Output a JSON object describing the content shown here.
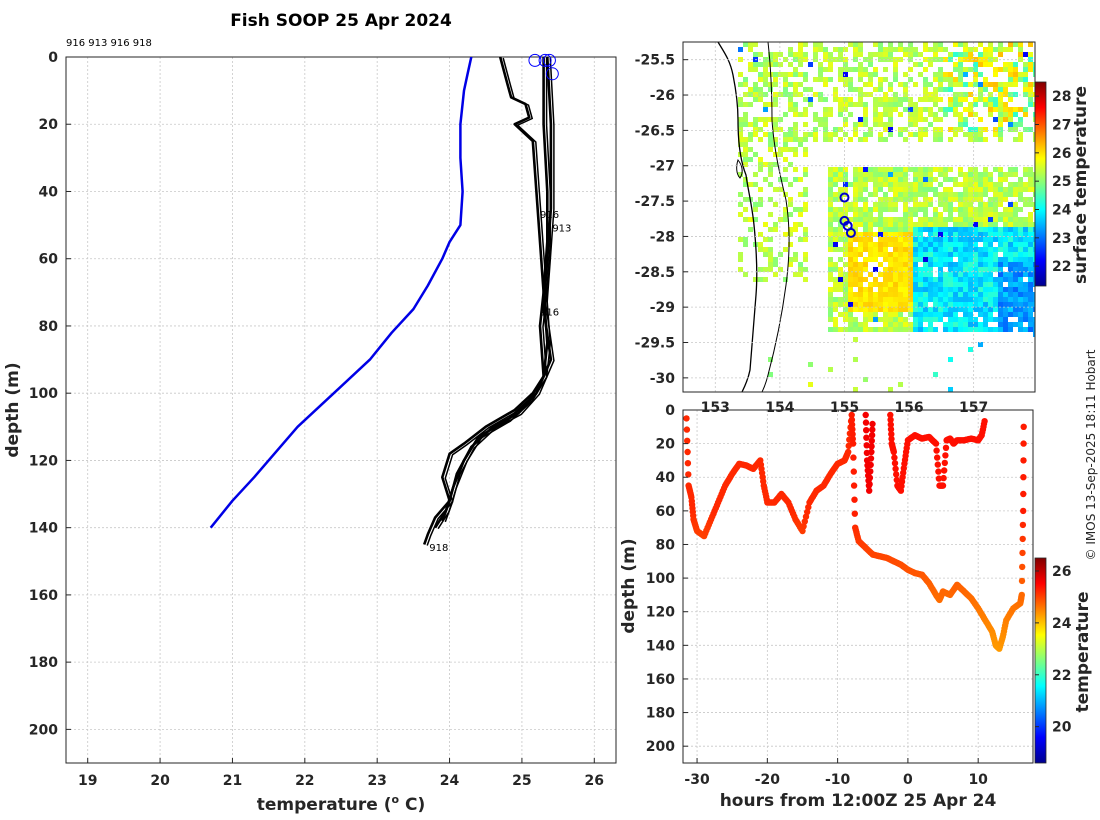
{
  "title": "Fish SOOP 25 Apr 2024",
  "credit": "© IMOS 13-Sep-2025 18:11 Hobart",
  "chart_data": [
    {
      "type": "line",
      "name": "temperature-profile",
      "xlabel": "temperature (",
      "xlabel_sup": "o",
      "xlabel_end": " C)",
      "ylabel": "depth (m)",
      "xlim": [
        18.7,
        26.3
      ],
      "ylim": [
        210,
        0
      ],
      "xticks": [
        19,
        20,
        21,
        22,
        23,
        24,
        25,
        26
      ],
      "yticks": [
        0,
        20,
        40,
        60,
        80,
        100,
        120,
        140,
        160,
        180,
        200
      ],
      "top_labels": "916 913 916 918",
      "profile_labels": [
        {
          "text": "916",
          "t": 25.25,
          "d": 47
        },
        {
          "text": "913",
          "t": 25.42,
          "d": 51
        },
        {
          "text": "916",
          "t": 25.25,
          "d": 76
        },
        {
          "text": "918",
          "t": 23.72,
          "d": 146
        }
      ],
      "series": [
        {
          "name": "climatology",
          "color": "#0000e6",
          "points": [
            [
              24.3,
              0
            ],
            [
              24.25,
              5
            ],
            [
              24.2,
              10
            ],
            [
              24.15,
              20
            ],
            [
              24.15,
              30
            ],
            [
              24.18,
              40
            ],
            [
              24.15,
              50
            ],
            [
              24.0,
              55
            ],
            [
              23.9,
              60
            ],
            [
              23.7,
              68
            ],
            [
              23.5,
              75
            ],
            [
              23.2,
              82
            ],
            [
              22.9,
              90
            ],
            [
              22.4,
              100
            ],
            [
              21.9,
              110
            ],
            [
              21.5,
              120
            ],
            [
              21.3,
              125
            ],
            [
              21.0,
              132
            ],
            [
              20.7,
              140
            ]
          ]
        },
        {
          "name": "profile-1",
          "color": "#000000",
          "points": [
            [
              24.7,
              0
            ],
            [
              24.8,
              8
            ],
            [
              24.85,
              12
            ],
            [
              25.05,
              14
            ],
            [
              25.1,
              18
            ],
            [
              24.9,
              20
            ],
            [
              25.15,
              25
            ],
            [
              25.2,
              40
            ],
            [
              25.25,
              55
            ],
            [
              25.3,
              70
            ],
            [
              25.25,
              80
            ],
            [
              25.3,
              95
            ],
            [
              25.15,
              100
            ],
            [
              24.9,
              105
            ],
            [
              24.5,
              110
            ],
            [
              24.2,
              115
            ],
            [
              24.0,
              118
            ],
            [
              23.9,
              125
            ],
            [
              24.0,
              132
            ],
            [
              23.8,
              137
            ],
            [
              23.7,
              142
            ],
            [
              23.65,
              145
            ]
          ]
        },
        {
          "name": "profile-2",
          "color": "#000000",
          "points": [
            [
              25.3,
              0
            ],
            [
              25.3,
              20
            ],
            [
              25.35,
              40
            ],
            [
              25.35,
              55
            ],
            [
              25.3,
              70
            ],
            [
              25.35,
              85
            ],
            [
              25.3,
              95
            ],
            [
              25.1,
              102
            ],
            [
              24.8,
              108
            ],
            [
              24.4,
              113
            ],
            [
              24.2,
              120
            ],
            [
              24.05,
              128
            ],
            [
              23.95,
              135
            ],
            [
              23.8,
              140
            ]
          ]
        },
        {
          "name": "profile-3",
          "color": "#000000",
          "points": [
            [
              25.35,
              0
            ],
            [
              25.4,
              20
            ],
            [
              25.4,
              45
            ],
            [
              25.35,
              60
            ],
            [
              25.3,
              75
            ],
            [
              25.4,
              90
            ],
            [
              25.2,
              100
            ],
            [
              24.95,
              106
            ],
            [
              24.6,
              110
            ],
            [
              24.3,
              116
            ],
            [
              24.1,
              124
            ],
            [
              24.0,
              132
            ],
            [
              23.9,
              138
            ]
          ]
        }
      ],
      "start_markers": [
        25.18,
        25.32,
        25.38
      ]
    },
    {
      "type": "heatmap",
      "name": "surface-temperature-map",
      "xlim": [
        152.5,
        157.95
      ],
      "ylim": [
        -30.2,
        -25.25
      ],
      "xticks": [
        153,
        154,
        155,
        156,
        157
      ],
      "yticks": [
        -25.5,
        -26,
        -26.5,
        -27,
        -27.5,
        -28,
        -28.5,
        -29,
        -29.5,
        -30
      ],
      "colorbar_label": "surface temperature",
      "colorbar_ticks": [
        22,
        23,
        24,
        25,
        26,
        27,
        28
      ],
      "colorbar_range": [
        21.3,
        28.5
      ],
      "positions": [
        [
          155.0,
          -27.45
        ],
        [
          155.0,
          -27.78
        ],
        [
          155.05,
          -27.85
        ],
        [
          155.1,
          -27.95
        ]
      ]
    },
    {
      "type": "scatter",
      "name": "depth-time-temperature",
      "xlabel": "hours from 12:00Z 25 Apr 24",
      "ylabel": "depth (m)",
      "xlim": [
        -32,
        17.8
      ],
      "ylim": [
        210,
        0
      ],
      "xticks": [
        -30,
        -20,
        -10,
        0,
        10
      ],
      "yticks": [
        0,
        20,
        40,
        60,
        80,
        100,
        120,
        140,
        160,
        180,
        200
      ],
      "colorbar_label": "temperature",
      "colorbar_ticks": [
        20,
        22,
        24,
        26
      ],
      "colorbar_range": [
        18.6,
        26.5
      ],
      "tracks": [
        {
          "temp": 25.2,
          "points": [
            [
              -31.5,
              5
            ],
            [
              -31.2,
              45
            ],
            [
              -30.8,
              52
            ],
            [
              -30.5,
              65
            ],
            [
              -30,
              72
            ],
            [
              -29,
              75
            ],
            [
              -28,
              65
            ],
            [
              -27,
              55
            ],
            [
              -26,
              45
            ],
            [
              -25,
              38
            ],
            [
              -24,
              32
            ],
            [
              -23,
              33
            ],
            [
              -22,
              35
            ],
            [
              -21,
              30
            ],
            [
              -20.5,
              45
            ],
            [
              -20,
              55
            ],
            [
              -19,
              55
            ],
            [
              -18,
              50
            ],
            [
              -17,
              55
            ],
            [
              -16,
              65
            ],
            [
              -15,
              72
            ],
            [
              -14,
              55
            ],
            [
              -13,
              48
            ],
            [
              -12,
              45
            ],
            [
              -11,
              38
            ],
            [
              -10,
              32
            ],
            [
              -9,
              30
            ],
            [
              -8.5,
              25
            ],
            [
              -8,
              3
            ]
          ]
        },
        {
          "temp": 25.3,
          "points": [
            [
              -8,
              3
            ],
            [
              -7.8,
              20
            ],
            [
              -7.5,
              70
            ],
            [
              -7,
              78
            ],
            [
              -6,
              82
            ],
            [
              -5,
              86
            ],
            [
              -4,
              87
            ],
            [
              -3,
              88
            ],
            [
              -2,
              90
            ],
            [
              -1,
              92
            ],
            [
              0,
              95
            ],
            [
              1,
              97
            ],
            [
              2,
              98
            ],
            [
              3,
              103
            ],
            [
              4,
              110
            ],
            [
              4.5,
              113
            ],
            [
              5,
              108
            ],
            [
              6,
              110
            ],
            [
              7,
              104
            ],
            [
              8,
              108
            ],
            [
              9,
              112
            ],
            [
              10,
              118
            ],
            [
              11,
              125
            ],
            [
              12,
              132
            ],
            [
              12.5,
              140
            ],
            [
              13,
              142
            ],
            [
              13.5,
              135
            ],
            [
              14,
              125
            ],
            [
              15,
              118
            ],
            [
              16,
              115
            ],
            [
              16.2,
              110
            ],
            [
              16.4,
              60
            ],
            [
              16.5,
              0
            ]
          ]
        },
        {
          "temp": 25.6,
          "points": [
            [
              -6,
              3
            ],
            [
              -5.8,
              30
            ],
            [
              -5.5,
              48
            ],
            [
              -5.2,
              25
            ],
            [
              -5,
              5
            ]
          ]
        },
        {
          "temp": 25.4,
          "points": [
            [
              -2.5,
              3
            ],
            [
              -2.3,
              20
            ],
            [
              -2,
              25
            ],
            [
              -1.5,
              45
            ],
            [
              -1,
              48
            ],
            [
              -0.5,
              32
            ],
            [
              0,
              18
            ],
            [
              1,
              15
            ],
            [
              2,
              17
            ],
            [
              3,
              16
            ],
            [
              4,
              20
            ],
            [
              4.5,
              45
            ],
            [
              5,
              45
            ],
            [
              5.5,
              18
            ],
            [
              6,
              17
            ],
            [
              6.5,
              20
            ],
            [
              7,
              18
            ],
            [
              8,
              18
            ],
            [
              9,
              17
            ],
            [
              10,
              18
            ],
            [
              10.5,
              15
            ],
            [
              11,
              5
            ]
          ]
        }
      ]
    }
  ]
}
